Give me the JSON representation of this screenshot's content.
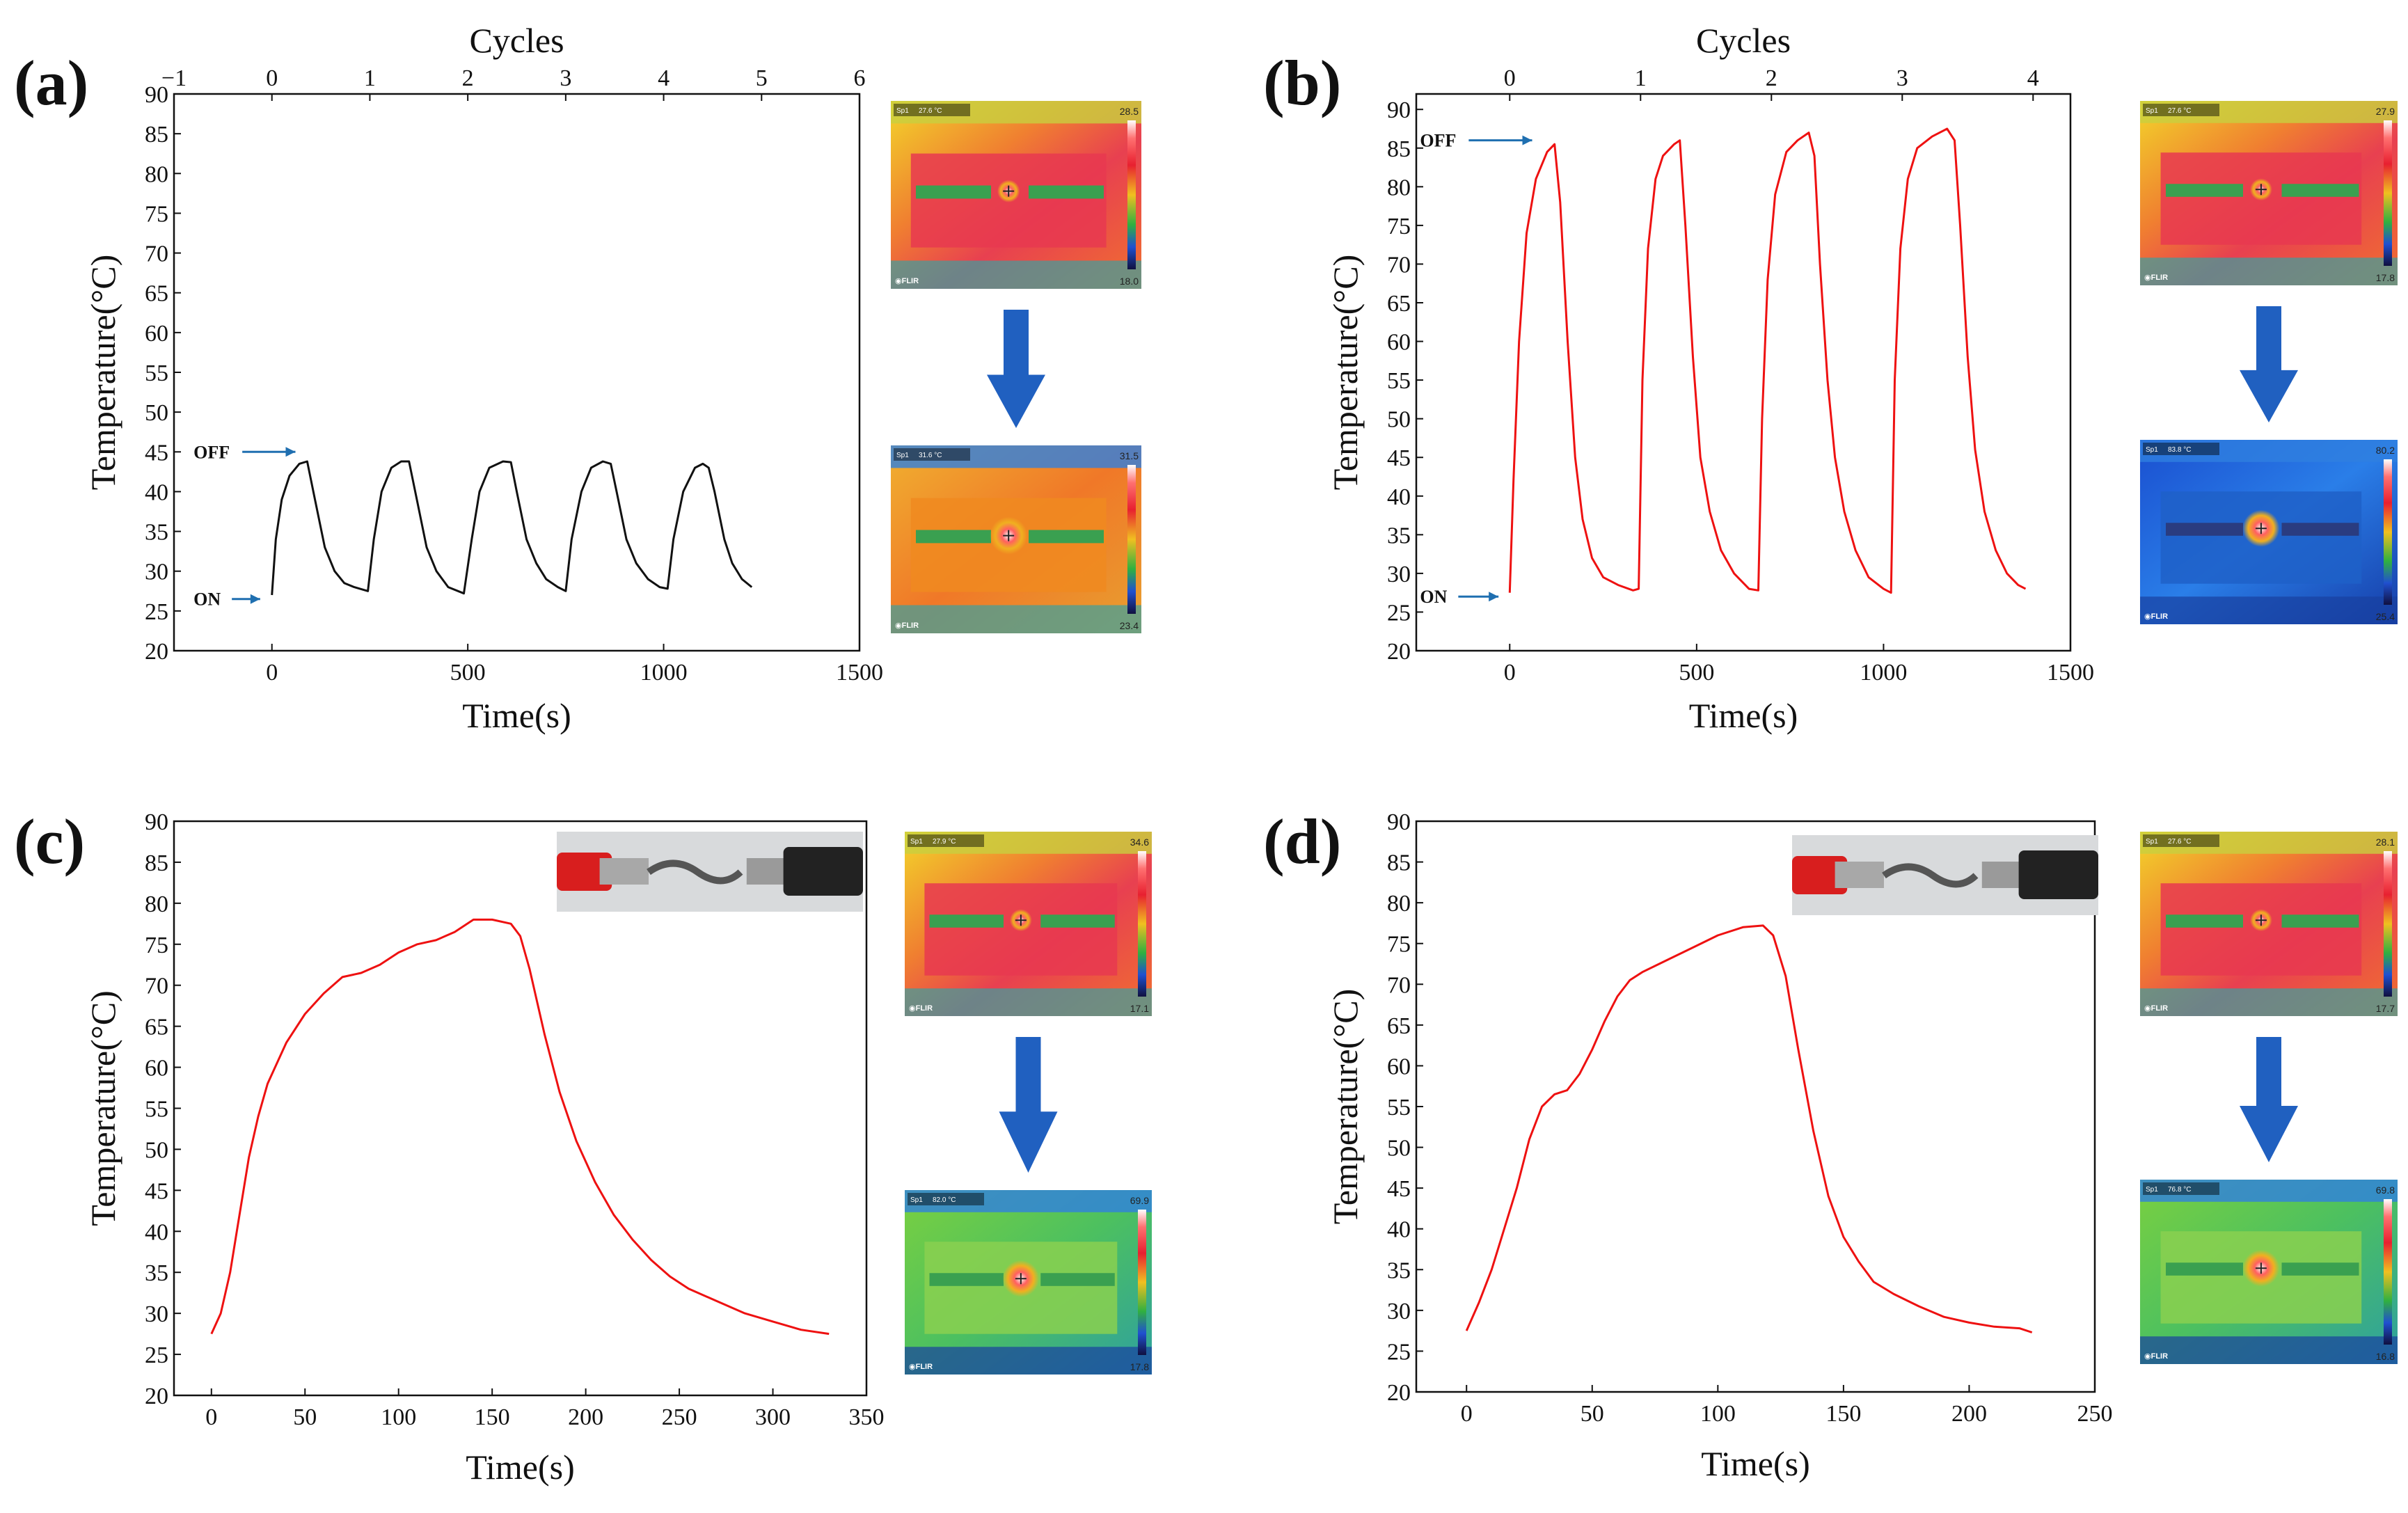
{
  "chart_data": [
    {
      "id": "a",
      "panel_label": "(a)",
      "type": "line",
      "xlabel": "Time(s)",
      "ylabel": "Temperature(°C)",
      "top_axis_label": "Cycles",
      "xlim": [
        -250,
        1500
      ],
      "ylim": [
        20,
        90
      ],
      "xticks": [
        0,
        500,
        1000,
        1500
      ],
      "yticks": [
        20,
        25,
        30,
        35,
        40,
        45,
        50,
        55,
        60,
        65,
        70,
        75,
        80,
        85,
        90
      ],
      "top_ticks": [
        {
          "label": "−1",
          "x": -250
        },
        {
          "label": "0",
          "x": 0
        },
        {
          "label": "1",
          "x": 250
        },
        {
          "label": "2",
          "x": 500
        },
        {
          "label": "3",
          "x": 750
        },
        {
          "label": "4",
          "x": 1000
        },
        {
          "label": "5",
          "x": 1250
        },
        {
          "label": "6",
          "x": 1500
        }
      ],
      "line_color": "#111111",
      "annotations": [
        {
          "text": "OFF",
          "x": -200,
          "y": 45,
          "arrow_to_x": 60,
          "arrow_to_y": 45
        },
        {
          "text": "ON",
          "x": -200,
          "y": 26.5,
          "arrow_to_x": -30,
          "arrow_to_y": 26.5
        }
      ],
      "series": [
        {
          "name": "Temperature",
          "points": [
            [
              0,
              27
            ],
            [
              10,
              34
            ],
            [
              25,
              39
            ],
            [
              45,
              42
            ],
            [
              70,
              43.5
            ],
            [
              90,
              43.8
            ],
            [
              110,
              39
            ],
            [
              135,
              33
            ],
            [
              160,
              30
            ],
            [
              185,
              28.5
            ],
            [
              210,
              28
            ],
            [
              245,
              27.5
            ],
            [
              260,
              34
            ],
            [
              280,
              40
            ],
            [
              305,
              43
            ],
            [
              330,
              43.8
            ],
            [
              350,
              43.8
            ],
            [
              370,
              39
            ],
            [
              395,
              33
            ],
            [
              420,
              30
            ],
            [
              450,
              28
            ],
            [
              490,
              27.2
            ],
            [
              510,
              34
            ],
            [
              530,
              40
            ],
            [
              555,
              43
            ],
            [
              590,
              43.8
            ],
            [
              610,
              43.7
            ],
            [
              625,
              40
            ],
            [
              650,
              34
            ],
            [
              675,
              31
            ],
            [
              700,
              29
            ],
            [
              730,
              28
            ],
            [
              750,
              27.5
            ],
            [
              765,
              34
            ],
            [
              790,
              40
            ],
            [
              815,
              43
            ],
            [
              845,
              43.8
            ],
            [
              865,
              43.5
            ],
            [
              880,
              40
            ],
            [
              905,
              34
            ],
            [
              930,
              31
            ],
            [
              960,
              29
            ],
            [
              990,
              28
            ],
            [
              1010,
              27.8
            ],
            [
              1025,
              34
            ],
            [
              1050,
              40
            ],
            [
              1080,
              43
            ],
            [
              1100,
              43.5
            ],
            [
              1115,
              43
            ],
            [
              1130,
              40
            ],
            [
              1155,
              34
            ],
            [
              1175,
              31
            ],
            [
              1200,
              29
            ],
            [
              1225,
              28
            ]
          ]
        }
      ],
      "thermal_images": [
        {
          "spot_text": "27.6 °C",
          "max_text": "28.5",
          "min_text": "18.0"
        },
        {
          "spot_text": "31.6 °C",
          "max_text": "31.5",
          "min_text": "23.4"
        }
      ]
    },
    {
      "id": "b",
      "panel_label": "(b)",
      "type": "line",
      "xlabel": "Time(s)",
      "ylabel": "Temperature(°C)",
      "top_axis_label": "Cycles",
      "xlim": [
        -250,
        1500
      ],
      "ylim": [
        20,
        92
      ],
      "xticks": [
        0,
        500,
        1000,
        1500
      ],
      "yticks": [
        20,
        25,
        30,
        35,
        40,
        45,
        50,
        55,
        60,
        65,
        70,
        75,
        80,
        85,
        90
      ],
      "top_ticks": [
        {
          "label": "0",
          "x": 0
        },
        {
          "label": "1",
          "x": 350
        },
        {
          "label": "2",
          "x": 700
        },
        {
          "label": "3",
          "x": 1050
        },
        {
          "label": "4",
          "x": 1400
        }
      ],
      "line_color": "#ee1111",
      "annotations": [
        {
          "text": "OFF",
          "x": -240,
          "y": 86,
          "arrow_to_x": 60,
          "arrow_to_y": 86
        },
        {
          "text": "ON",
          "x": -240,
          "y": 27,
          "arrow_to_x": -30,
          "arrow_to_y": 27
        }
      ],
      "series": [
        {
          "name": "Temperature",
          "points": [
            [
              0,
              27.5
            ],
            [
              10,
              42
            ],
            [
              25,
              60
            ],
            [
              45,
              74
            ],
            [
              70,
              81
            ],
            [
              100,
              84.5
            ],
            [
              120,
              85.5
            ],
            [
              135,
              78
            ],
            [
              155,
              60
            ],
            [
              175,
              45
            ],
            [
              195,
              37
            ],
            [
              220,
              32
            ],
            [
              250,
              29.5
            ],
            [
              290,
              28.5
            ],
            [
              330,
              27.8
            ],
            [
              345,
              28
            ],
            [
              355,
              55
            ],
            [
              370,
              72
            ],
            [
              390,
              81
            ],
            [
              410,
              84
            ],
            [
              440,
              85.5
            ],
            [
              455,
              86
            ],
            [
              470,
              75
            ],
            [
              490,
              58
            ],
            [
              510,
              45
            ],
            [
              535,
              38
            ],
            [
              565,
              33
            ],
            [
              600,
              30
            ],
            [
              640,
              28
            ],
            [
              665,
              27.8
            ],
            [
              675,
              50
            ],
            [
              690,
              68
            ],
            [
              710,
              79
            ],
            [
              740,
              84.5
            ],
            [
              770,
              86
            ],
            [
              800,
              87
            ],
            [
              815,
              84
            ],
            [
              830,
              70
            ],
            [
              850,
              55
            ],
            [
              870,
              45
            ],
            [
              895,
              38
            ],
            [
              925,
              33
            ],
            [
              960,
              29.5
            ],
            [
              1000,
              28
            ],
            [
              1020,
              27.5
            ],
            [
              1030,
              55
            ],
            [
              1045,
              72
            ],
            [
              1065,
              81
            ],
            [
              1090,
              85
            ],
            [
              1130,
              86.5
            ],
            [
              1170,
              87.5
            ],
            [
              1190,
              86
            ],
            [
              1205,
              75
            ],
            [
              1225,
              58
            ],
            [
              1245,
              46
            ],
            [
              1270,
              38
            ],
            [
              1300,
              33
            ],
            [
              1330,
              30
            ],
            [
              1360,
              28.5
            ],
            [
              1380,
              28
            ]
          ]
        }
      ],
      "thermal_images": [
        {
          "spot_text": "27.6 °C",
          "max_text": "27.9",
          "min_text": "17.8"
        },
        {
          "spot_text": "83.8 °C",
          "max_text": "80.2",
          "min_text": "25.4"
        }
      ]
    },
    {
      "id": "c",
      "panel_label": "(c)",
      "type": "line",
      "xlabel": "Time(s)",
      "ylabel": "Temperature(°C)",
      "xlim": [
        -20,
        350
      ],
      "ylim": [
        20,
        90
      ],
      "xticks": [
        0,
        50,
        100,
        150,
        200,
        250,
        300,
        350
      ],
      "yticks": [
        20,
        25,
        30,
        35,
        40,
        45,
        50,
        55,
        60,
        65,
        70,
        75,
        80,
        85,
        90
      ],
      "line_color": "#ee1111",
      "series": [
        {
          "name": "Temperature",
          "points": [
            [
              0,
              27.5
            ],
            [
              5,
              30
            ],
            [
              10,
              35
            ],
            [
              15,
              42
            ],
            [
              20,
              49
            ],
            [
              25,
              54
            ],
            [
              30,
              58
            ],
            [
              40,
              63
            ],
            [
              50,
              66.5
            ],
            [
              60,
              69
            ],
            [
              70,
              71
            ],
            [
              80,
              71.5
            ],
            [
              90,
              72.5
            ],
            [
              100,
              74
            ],
            [
              110,
              75
            ],
            [
              120,
              75.5
            ],
            [
              130,
              76.5
            ],
            [
              140,
              78
            ],
            [
              150,
              78
            ],
            [
              160,
              77.5
            ],
            [
              165,
              76
            ],
            [
              170,
              72
            ],
            [
              178,
              64
            ],
            [
              186,
              57
            ],
            [
              195,
              51
            ],
            [
              205,
              46
            ],
            [
              215,
              42
            ],
            [
              225,
              39
            ],
            [
              235,
              36.5
            ],
            [
              245,
              34.5
            ],
            [
              255,
              33
            ],
            [
              270,
              31.5
            ],
            [
              285,
              30
            ],
            [
              300,
              29
            ],
            [
              315,
              28
            ],
            [
              330,
              27.5
            ]
          ]
        }
      ],
      "thermal_images": [
        {
          "spot_text": "27.9 °C",
          "max_text": "34.6",
          "min_text": "17.1"
        },
        {
          "spot_text": "82.0 °C",
          "max_text": "69.9",
          "min_text": "17.8"
        }
      ]
    },
    {
      "id": "d",
      "panel_label": "(d)",
      "type": "line",
      "xlabel": "Time(s)",
      "ylabel": "Temperature(°C)",
      "xlim": [
        -20,
        250
      ],
      "ylim": [
        20,
        90
      ],
      "xticks": [
        0,
        50,
        100,
        150,
        200,
        250
      ],
      "yticks": [
        20,
        25,
        30,
        35,
        40,
        45,
        50,
        55,
        60,
        65,
        70,
        75,
        80,
        85,
        90
      ],
      "line_color": "#ee1111",
      "series": [
        {
          "name": "Temperature",
          "points": [
            [
              0,
              27.5
            ],
            [
              5,
              31
            ],
            [
              10,
              35
            ],
            [
              15,
              40
            ],
            [
              20,
              45
            ],
            [
              25,
              51
            ],
            [
              30,
              55
            ],
            [
              35,
              56.5
            ],
            [
              40,
              57
            ],
            [
              45,
              59
            ],
            [
              50,
              62
            ],
            [
              55,
              65.5
            ],
            [
              60,
              68.5
            ],
            [
              65,
              70.5
            ],
            [
              70,
              71.5
            ],
            [
              80,
              73
            ],
            [
              90,
              74.5
            ],
            [
              100,
              76
            ],
            [
              110,
              77
            ],
            [
              118,
              77.2
            ],
            [
              122,
              76
            ],
            [
              127,
              71
            ],
            [
              132,
              62
            ],
            [
              138,
              52
            ],
            [
              144,
              44
            ],
            [
              150,
              39
            ],
            [
              156,
              36
            ],
            [
              162,
              33.5
            ],
            [
              170,
              32
            ],
            [
              180,
              30.5
            ],
            [
              190,
              29.2
            ],
            [
              200,
              28.5
            ],
            [
              210,
              28
            ],
            [
              220,
              27.8
            ],
            [
              225,
              27.3
            ]
          ]
        }
      ],
      "thermal_images": [
        {
          "spot_text": "27.6 °C",
          "max_text": "28.1",
          "min_text": "17.7"
        },
        {
          "spot_text": "76.8 °C",
          "max_text": "69.8",
          "min_text": "16.8"
        }
      ]
    }
  ],
  "thermal_brand": "◉FLIR",
  "thermal_spot_label": "Sp1",
  "arrow_color": "#2060c0"
}
